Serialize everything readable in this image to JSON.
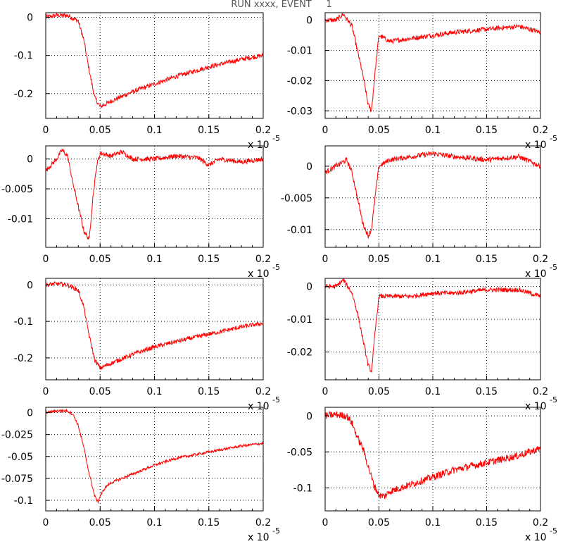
{
  "title": "RUN xxxx, EVENT     1",
  "colors": {
    "trace": "#ff0000",
    "frame": "#000000",
    "grid": "#000000",
    "title": "#555555"
  },
  "chart_data": [
    {
      "type": "line",
      "xlim": [
        0,
        0.2
      ],
      "ylim": [
        -0.265,
        0.012
      ],
      "grid": true,
      "xticks": [
        "0",
        "0.05",
        "0.1",
        "0.15",
        "0.2"
      ],
      "xtick_values": [
        0,
        0.05,
        0.1,
        0.15,
        0.2
      ],
      "yticks": [
        "0",
        "-0.1",
        "-0.2"
      ],
      "ytick_values": [
        0,
        -0.1,
        -0.2
      ],
      "x_multiplier": {
        "base": "x 10",
        "exp": "-5"
      },
      "series": [
        {
          "x": [
            0,
            0.01,
            0.02,
            0.03,
            0.035,
            0.04,
            0.045,
            0.05,
            0.06,
            0.08,
            0.1,
            0.12,
            0.15,
            0.18,
            0.2
          ],
          "y": [
            0.0,
            0.005,
            0.005,
            -0.01,
            -0.06,
            -0.14,
            -0.21,
            -0.235,
            -0.22,
            -0.195,
            -0.175,
            -0.155,
            -0.13,
            -0.11,
            -0.1
          ],
          "noise": 0.006
        }
      ]
    },
    {
      "type": "line",
      "xlim": [
        0,
        0.2
      ],
      "ylim": [
        -0.0325,
        0.0025
      ],
      "grid": true,
      "xticks": [
        "0",
        "0.05",
        "0.1",
        "0.15",
        "0.2"
      ],
      "xtick_values": [
        0,
        0.05,
        0.1,
        0.15,
        0.2
      ],
      "yticks": [
        "0",
        "-0.01",
        "-0.02",
        "-0.03"
      ],
      "ytick_values": [
        0,
        -0.01,
        -0.02,
        -0.03
      ],
      "x_multiplier": {
        "base": "x 10",
        "exp": "-5"
      },
      "series": [
        {
          "x": [
            0,
            0.01,
            0.017,
            0.025,
            0.03,
            0.035,
            0.04,
            0.043,
            0.047,
            0.05,
            0.06,
            0.08,
            0.1,
            0.12,
            0.15,
            0.18,
            0.2
          ],
          "y": [
            0.0,
            0.0,
            0.002,
            -0.002,
            -0.01,
            -0.018,
            -0.028,
            -0.03,
            -0.015,
            -0.005,
            -0.007,
            -0.006,
            -0.005,
            -0.004,
            -0.003,
            -0.002,
            -0.004
          ],
          "noise": 0.0008
        }
      ]
    },
    {
      "type": "line",
      "xlim": [
        0,
        0.2
      ],
      "ylim": [
        -0.0148,
        0.0022
      ],
      "grid": true,
      "xticks": [
        "0",
        "0.05",
        "0.1",
        "0.15",
        "0.2"
      ],
      "xtick_values": [
        0,
        0.05,
        0.1,
        0.15,
        0.2
      ],
      "yticks": [
        "0",
        "-0.005",
        "-0.01"
      ],
      "ytick_values": [
        0,
        -0.005,
        -0.01
      ],
      "x_multiplier": {
        "base": "x 10",
        "exp": "-5"
      },
      "series": [
        {
          "x": [
            0,
            0.01,
            0.015,
            0.02,
            0.025,
            0.03,
            0.035,
            0.04,
            0.043,
            0.047,
            0.05,
            0.06,
            0.07,
            0.08,
            0.1,
            0.12,
            0.14,
            0.15,
            0.16,
            0.18,
            0.2
          ],
          "y": [
            -0.002,
            0.0,
            0.0015,
            0.0005,
            -0.004,
            -0.008,
            -0.012,
            -0.0135,
            -0.007,
            -0.001,
            0.001,
            0.0005,
            0.0012,
            0.0,
            0.0,
            0.0005,
            0.0002,
            -0.001,
            0.0,
            -0.0005,
            0.0
          ],
          "noise": 0.0004
        }
      ]
    },
    {
      "type": "line",
      "xlim": [
        0,
        0.2
      ],
      "ylim": [
        -0.0128,
        0.0032
      ],
      "grid": true,
      "xticks": [
        "0",
        "0.05",
        "0.1",
        "0.15",
        "0.2"
      ],
      "xtick_values": [
        0,
        0.05,
        0.1,
        0.15,
        0.2
      ],
      "yticks": [
        "0",
        "-0.005",
        "-0.01"
      ],
      "ytick_values": [
        0,
        -0.005,
        -0.01
      ],
      "x_multiplier": {
        "base": "x 10",
        "exp": "-5"
      },
      "series": [
        {
          "x": [
            0,
            0.01,
            0.02,
            0.025,
            0.03,
            0.035,
            0.04,
            0.043,
            0.047,
            0.05,
            0.06,
            0.08,
            0.1,
            0.12,
            0.15,
            0.18,
            0.2
          ],
          "y": [
            -0.001,
            0.0,
            0.001,
            -0.001,
            -0.005,
            -0.009,
            -0.011,
            -0.01,
            -0.004,
            0.0,
            0.001,
            0.0015,
            0.002,
            0.0015,
            0.001,
            0.0015,
            0.0
          ],
          "noise": 0.0004
        }
      ]
    },
    {
      "type": "line",
      "xlim": [
        0,
        0.2
      ],
      "ylim": [
        -0.26,
        0.018
      ],
      "grid": true,
      "xticks": [
        "0",
        "0.05",
        "0.1",
        "0.15",
        "0.2"
      ],
      "xtick_values": [
        0,
        0.05,
        0.1,
        0.15,
        0.2
      ],
      "yticks": [
        "0",
        "-0.1",
        "-0.2"
      ],
      "ytick_values": [
        0,
        -0.1,
        -0.2
      ],
      "x_multiplier": {
        "base": "x 10",
        "exp": "-5"
      },
      "series": [
        {
          "x": [
            0,
            0.01,
            0.02,
            0.03,
            0.035,
            0.04,
            0.045,
            0.05,
            0.06,
            0.08,
            0.1,
            0.12,
            0.15,
            0.18,
            0.2
          ],
          "y": [
            0.0,
            0.003,
            0.0,
            -0.015,
            -0.06,
            -0.14,
            -0.205,
            -0.228,
            -0.215,
            -0.19,
            -0.17,
            -0.155,
            -0.135,
            -0.115,
            -0.105
          ],
          "noise": 0.006
        }
      ]
    },
    {
      "type": "line",
      "xlim": [
        0,
        0.2
      ],
      "ylim": [
        -0.0285,
        0.0025
      ],
      "grid": true,
      "xticks": [
        "0",
        "0.05",
        "0.1",
        "0.15",
        "0.2"
      ],
      "xtick_values": [
        0,
        0.05,
        0.1,
        0.15,
        0.2
      ],
      "yticks": [
        "0",
        "-0.01",
        "-0.02"
      ],
      "ytick_values": [
        0,
        -0.01,
        -0.02
      ],
      "x_multiplier": {
        "base": "x 10",
        "exp": "-5"
      },
      "series": [
        {
          "x": [
            0,
            0.01,
            0.017,
            0.025,
            0.03,
            0.035,
            0.04,
            0.043,
            0.047,
            0.05,
            0.06,
            0.08,
            0.1,
            0.12,
            0.15,
            0.18,
            0.2
          ],
          "y": [
            0.0,
            0.0,
            0.002,
            -0.002,
            -0.008,
            -0.016,
            -0.024,
            -0.026,
            -0.012,
            -0.003,
            -0.003,
            -0.003,
            -0.002,
            -0.002,
            -0.001,
            -0.001,
            -0.003
          ],
          "noise": 0.0007
        }
      ]
    },
    {
      "type": "line",
      "xlim": [
        0,
        0.2
      ],
      "ylim": [
        -0.112,
        0.006
      ],
      "grid": true,
      "xticks": [
        "0",
        "0.05",
        "0.1",
        "0.15",
        "0.2"
      ],
      "xtick_values": [
        0,
        0.05,
        0.1,
        0.15,
        0.2
      ],
      "yticks": [
        "0",
        "-0.025",
        "-0.05",
        "-0.075",
        "-0.1"
      ],
      "ytick_values": [
        0,
        -0.025,
        -0.05,
        -0.075,
        -0.1
      ],
      "x_multiplier": {
        "base": "x 10",
        "exp": "-5"
      },
      "series": [
        {
          "x": [
            0,
            0.01,
            0.02,
            0.025,
            0.03,
            0.035,
            0.04,
            0.045,
            0.048,
            0.05,
            0.055,
            0.06,
            0.08,
            0.1,
            0.12,
            0.15,
            0.18,
            0.2
          ],
          "y": [
            0.0,
            0.002,
            0.002,
            -0.002,
            -0.015,
            -0.04,
            -0.07,
            -0.095,
            -0.102,
            -0.095,
            -0.085,
            -0.08,
            -0.07,
            -0.06,
            -0.052,
            -0.045,
            -0.038,
            -0.035
          ],
          "noise": 0.0015
        }
      ]
    },
    {
      "type": "line",
      "xlim": [
        0,
        0.2
      ],
      "ylim": [
        -0.132,
        0.012
      ],
      "grid": true,
      "xticks": [
        "0",
        "0.05",
        "0.1",
        "0.15",
        "0.2"
      ],
      "xtick_values": [
        0,
        0.05,
        0.1,
        0.15,
        0.2
      ],
      "yticks": [
        "0",
        "-0.05",
        "-0.1"
      ],
      "ytick_values": [
        0,
        -0.05,
        -0.1
      ],
      "x_multiplier": {
        "base": "x 10",
        "exp": "-5"
      },
      "series": [
        {
          "x": [
            0,
            0.01,
            0.02,
            0.025,
            0.03,
            0.035,
            0.04,
            0.045,
            0.05,
            0.055,
            0.06,
            0.08,
            0.1,
            0.12,
            0.15,
            0.18,
            0.2
          ],
          "y": [
            0.0,
            0.002,
            0.0,
            -0.01,
            -0.03,
            -0.045,
            -0.07,
            -0.095,
            -0.11,
            -0.112,
            -0.105,
            -0.095,
            -0.085,
            -0.075,
            -0.065,
            -0.055,
            -0.045
          ],
          "noise": 0.005
        }
      ]
    }
  ]
}
